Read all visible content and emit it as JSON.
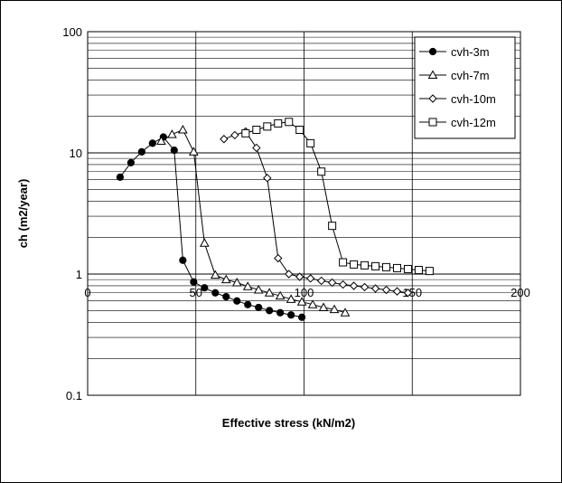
{
  "chart_data": {
    "type": "line",
    "title": "",
    "xlabel": "Effective stress (kN/m2)",
    "ylabel": "ch (m2/year)",
    "xlim": [
      0,
      200
    ],
    "ylim": [
      0.1,
      100
    ],
    "yscale": "log",
    "grid": true,
    "legend_position": "top-right",
    "x_ticks": [
      "0",
      "50",
      "100",
      "150",
      "200"
    ],
    "y_ticks": [
      "0.1",
      "1",
      "10",
      "100"
    ],
    "series": [
      {
        "name": "cvh-3m",
        "marker": "filled-circle",
        "x": [
          15,
          20,
          25,
          30,
          35,
          40,
          44,
          49,
          54,
          59,
          64,
          69,
          74,
          79,
          84,
          89,
          94,
          99
        ],
        "y": [
          6.3,
          8.3,
          10.2,
          12,
          13.5,
          10.5,
          1.3,
          0.86,
          0.77,
          0.7,
          0.65,
          0.6,
          0.56,
          0.53,
          0.5,
          0.48,
          0.46,
          0.44
        ]
      },
      {
        "name": "cvh-7m",
        "marker": "open-triangle",
        "x": [
          34,
          39,
          44,
          49,
          54,
          59,
          64,
          69,
          74,
          79,
          84,
          89,
          94,
          99,
          104,
          109,
          114,
          119
        ],
        "y": [
          12.5,
          14.2,
          15.5,
          10.2,
          1.8,
          0.98,
          0.9,
          0.85,
          0.79,
          0.74,
          0.7,
          0.66,
          0.62,
          0.59,
          0.56,
          0.53,
          0.51,
          0.48
        ]
      },
      {
        "name": "cvh-10m",
        "marker": "open-diamond",
        "x": [
          63,
          68,
          73,
          78,
          83,
          88,
          93,
          98,
          103,
          108,
          113,
          118,
          123,
          128,
          133,
          138,
          143,
          148
        ],
        "y": [
          13,
          14,
          15,
          11,
          6.2,
          1.35,
          1,
          0.95,
          0.92,
          0.88,
          0.85,
          0.82,
          0.8,
          0.78,
          0.76,
          0.74,
          0.72,
          0.7
        ]
      },
      {
        "name": "cvh-12m",
        "marker": "open-square",
        "x": [
          73,
          78,
          83,
          88,
          93,
          98,
          103,
          108,
          113,
          118,
          123,
          128,
          133,
          138,
          143,
          148,
          153,
          158
        ],
        "y": [
          14.5,
          15.5,
          16.5,
          17.5,
          18,
          15.5,
          12,
          7,
          2.5,
          1.25,
          1.2,
          1.18,
          1.16,
          1.14,
          1.12,
          1.1,
          1.08,
          1.06
        ]
      }
    ]
  }
}
